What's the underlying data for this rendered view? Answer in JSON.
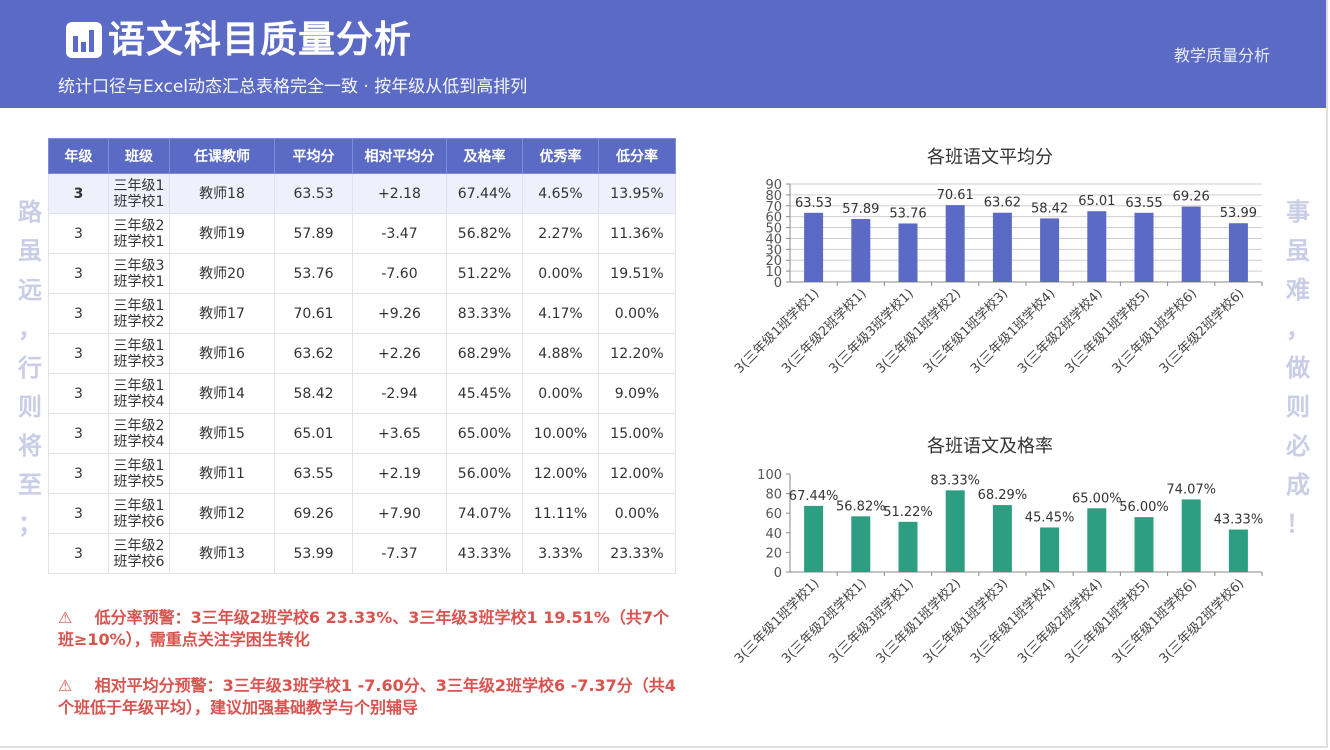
{
  "header": {
    "title": "语文科目质量分析",
    "subtitle": "统计口径与Excel动态汇总表格完全一致 · 按年级从低到高排列",
    "right_label": "教学质量分析"
  },
  "side": {
    "left": [
      "路",
      "虽",
      "远",
      "，",
      "行",
      "则",
      "将",
      "至",
      "；"
    ],
    "right": [
      "事",
      "虽",
      "难",
      "，",
      "做",
      "则",
      "必",
      "成",
      "！"
    ]
  },
  "table": {
    "headers": [
      "年级",
      "班级",
      "任课教师",
      "平均分",
      "相对平均分",
      "及格率",
      "优秀率",
      "低分率"
    ],
    "rows": [
      {
        "grade": "3",
        "cls1": "三年级1",
        "cls2": "班学校1",
        "teacher": "教师18",
        "avg": "63.53",
        "rel": "+2.18",
        "pass": "67.44%",
        "excel": "4.65%",
        "low": "13.95%"
      },
      {
        "grade": "3",
        "cls1": "三年级2",
        "cls2": "班学校1",
        "teacher": "教师19",
        "avg": "57.89",
        "rel": "-3.47",
        "pass": "56.82%",
        "excel": "2.27%",
        "low": "11.36%"
      },
      {
        "grade": "3",
        "cls1": "三年级3",
        "cls2": "班学校1",
        "teacher": "教师20",
        "avg": "53.76",
        "rel": "-7.60",
        "pass": "51.22%",
        "excel": "0.00%",
        "low": "19.51%"
      },
      {
        "grade": "3",
        "cls1": "三年级1",
        "cls2": "班学校2",
        "teacher": "教师17",
        "avg": "70.61",
        "rel": "+9.26",
        "pass": "83.33%",
        "excel": "4.17%",
        "low": "0.00%"
      },
      {
        "grade": "3",
        "cls1": "三年级1",
        "cls2": "班学校3",
        "teacher": "教师16",
        "avg": "63.62",
        "rel": "+2.26",
        "pass": "68.29%",
        "excel": "4.88%",
        "low": "12.20%"
      },
      {
        "grade": "3",
        "cls1": "三年级1",
        "cls2": "班学校4",
        "teacher": "教师14",
        "avg": "58.42",
        "rel": "-2.94",
        "pass": "45.45%",
        "excel": "0.00%",
        "low": "9.09%"
      },
      {
        "grade": "3",
        "cls1": "三年级2",
        "cls2": "班学校4",
        "teacher": "教师15",
        "avg": "65.01",
        "rel": "+3.65",
        "pass": "65.00%",
        "excel": "10.00%",
        "low": "15.00%"
      },
      {
        "grade": "3",
        "cls1": "三年级1",
        "cls2": "班学校5",
        "teacher": "教师11",
        "avg": "63.55",
        "rel": "+2.19",
        "pass": "56.00%",
        "excel": "12.00%",
        "low": "12.00%"
      },
      {
        "grade": "3",
        "cls1": "三年级1",
        "cls2": "班学校6",
        "teacher": "教师12",
        "avg": "69.26",
        "rel": "+7.90",
        "pass": "74.07%",
        "excel": "11.11%",
        "low": "0.00%"
      },
      {
        "grade": "3",
        "cls1": "三年级2",
        "cls2": "班学校6",
        "teacher": "教师13",
        "avg": "53.99",
        "rel": "-7.37",
        "pass": "43.33%",
        "excel": "3.33%",
        "low": "23.33%"
      }
    ]
  },
  "warnings": {
    "icon": "warning-icon",
    "low_rate": "低分率预警：3三年级2班学校6 23.33%、3三年级3班学校1 19.51%（共7个班≥10%），需重点关注学困生转化",
    "relative_avg": "相对平均分预警：3三年级3班学校1 -7.60分、3三年级2班学校6 -7.37分（共4个班低于年级平均），建议加强基础教学与个别辅导"
  },
  "colors": {
    "primary": "#5b6bc5",
    "teal": "#2e9e82",
    "positive": "#2e8b57",
    "negative": "#d9534f",
    "side_text": "#c9cde6"
  },
  "chart_data": [
    {
      "type": "bar",
      "title": "各班语文平均分",
      "categories": [
        "3(三年级1班学校1)",
        "3(三年级2班学校1)",
        "3(三年级3班学校1)",
        "3(三年级1班学校2)",
        "3(三年级1班学校3)",
        "3(三年级1班学校4)",
        "3(三年级2班学校4)",
        "3(三年级1班学校5)",
        "3(三年级1班学校6)",
        "3(三年级2班学校6)"
      ],
      "values": [
        63.53,
        57.89,
        53.76,
        70.61,
        63.62,
        58.42,
        65.01,
        63.55,
        69.26,
        53.99
      ],
      "value_labels": [
        "63.53",
        "57.89",
        "53.76",
        "70.61",
        "63.62",
        "58.42",
        "65.01",
        "63.55",
        "69.26",
        "53.99"
      ],
      "ylim": [
        0,
        90
      ],
      "yticks": [
        0,
        10,
        20,
        30,
        40,
        50,
        60,
        70,
        80,
        90
      ],
      "grid": true,
      "color": "#5b6bc5"
    },
    {
      "type": "bar",
      "title": "各班语文及格率",
      "categories": [
        "3(三年级1班学校1)",
        "3(三年级2班学校1)",
        "3(三年级3班学校1)",
        "3(三年级1班学校2)",
        "3(三年级1班学校3)",
        "3(三年级1班学校4)",
        "3(三年级2班学校4)",
        "3(三年级1班学校5)",
        "3(三年级1班学校6)",
        "3(三年级2班学校6)"
      ],
      "values": [
        67.44,
        56.82,
        51.22,
        83.33,
        68.29,
        45.45,
        65.0,
        56.0,
        74.07,
        43.33
      ],
      "value_labels": [
        "67.44%",
        "56.82%",
        "51.22%",
        "83.33%",
        "68.29%",
        "45.45%",
        "65.00%",
        "56.00%",
        "74.07%",
        "43.33%"
      ],
      "ylim": [
        0,
        100
      ],
      "yticks": [
        0,
        20,
        40,
        60,
        80,
        100
      ],
      "grid": false,
      "color": "#2e9e82"
    }
  ]
}
